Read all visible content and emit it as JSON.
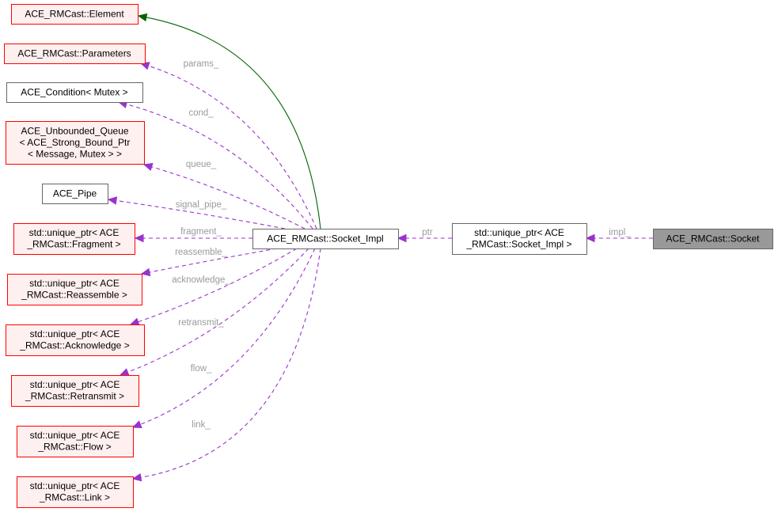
{
  "colors": {
    "external_fill": "#fff0f0",
    "external_border": "#ff0000",
    "normal_fill": "#ffffff",
    "normal_border": "#666666",
    "focus_fill": "#999999",
    "inherit_edge": "#006400",
    "usage_edge": "#9a32cd",
    "edge_label": "#9a9a9a"
  },
  "nodes": [
    {
      "id": "element",
      "lines": [
        "ACE_RMCast::Element"
      ],
      "style": "external"
    },
    {
      "id": "parameters",
      "lines": [
        "ACE_RMCast::Parameters"
      ],
      "style": "external"
    },
    {
      "id": "condition",
      "lines": [
        "ACE_Condition< Mutex >"
      ],
      "style": "normal"
    },
    {
      "id": "queue",
      "lines": [
        "ACE_Unbounded_Queue",
        "< ACE_Strong_Bound_Ptr",
        "< Message, Mutex > >"
      ],
      "style": "external"
    },
    {
      "id": "pipe",
      "lines": [
        "ACE_Pipe"
      ],
      "style": "normal"
    },
    {
      "id": "fragment",
      "lines": [
        "std::unique_ptr< ACE",
        "_RMCast::Fragment >"
      ],
      "style": "external"
    },
    {
      "id": "reassemble",
      "lines": [
        "std::unique_ptr< ACE",
        "_RMCast::Reassemble >"
      ],
      "style": "external"
    },
    {
      "id": "acknowledge",
      "lines": [
        "std::unique_ptr< ACE",
        "_RMCast::Acknowledge >"
      ],
      "style": "external"
    },
    {
      "id": "retransmit",
      "lines": [
        "std::unique_ptr< ACE",
        "_RMCast::Retransmit >"
      ],
      "style": "external"
    },
    {
      "id": "flow",
      "lines": [
        "std::unique_ptr< ACE",
        "_RMCast::Flow >"
      ],
      "style": "external"
    },
    {
      "id": "link",
      "lines": [
        "std::unique_ptr< ACE",
        "_RMCast::Link >"
      ],
      "style": "external"
    },
    {
      "id": "socket_impl",
      "lines": [
        "ACE_RMCast::Socket_Impl"
      ],
      "style": "normal"
    },
    {
      "id": "uptr_socket_impl",
      "lines": [
        "std::unique_ptr< ACE",
        "_RMCast::Socket_Impl >"
      ],
      "style": "normal"
    },
    {
      "id": "socket",
      "lines": [
        "ACE_RMCast::Socket"
      ],
      "style": "focus"
    }
  ],
  "edges": [
    {
      "from": "socket_impl",
      "to": "element",
      "label": "",
      "kind": "inherit"
    },
    {
      "from": "socket_impl",
      "to": "parameters",
      "label": "params_",
      "kind": "usage"
    },
    {
      "from": "socket_impl",
      "to": "condition",
      "label": "cond_",
      "kind": "usage"
    },
    {
      "from": "socket_impl",
      "to": "queue",
      "label": "queue_",
      "kind": "usage"
    },
    {
      "from": "socket_impl",
      "to": "pipe",
      "label": "signal_pipe_",
      "kind": "usage"
    },
    {
      "from": "socket_impl",
      "to": "fragment",
      "label": "fragment_",
      "kind": "usage"
    },
    {
      "from": "socket_impl",
      "to": "reassemble",
      "label": "reassemble_",
      "kind": "usage"
    },
    {
      "from": "socket_impl",
      "to": "acknowledge",
      "label": "acknowledge_",
      "kind": "usage"
    },
    {
      "from": "socket_impl",
      "to": "retransmit",
      "label": "retransmit_",
      "kind": "usage"
    },
    {
      "from": "socket_impl",
      "to": "flow",
      "label": "flow_",
      "kind": "usage"
    },
    {
      "from": "socket_impl",
      "to": "link",
      "label": "link_",
      "kind": "usage"
    },
    {
      "from": "uptr_socket_impl",
      "to": "socket_impl",
      "label": "ptr",
      "kind": "usage"
    },
    {
      "from": "socket",
      "to": "uptr_socket_impl",
      "label": "impl_",
      "kind": "usage"
    }
  ]
}
